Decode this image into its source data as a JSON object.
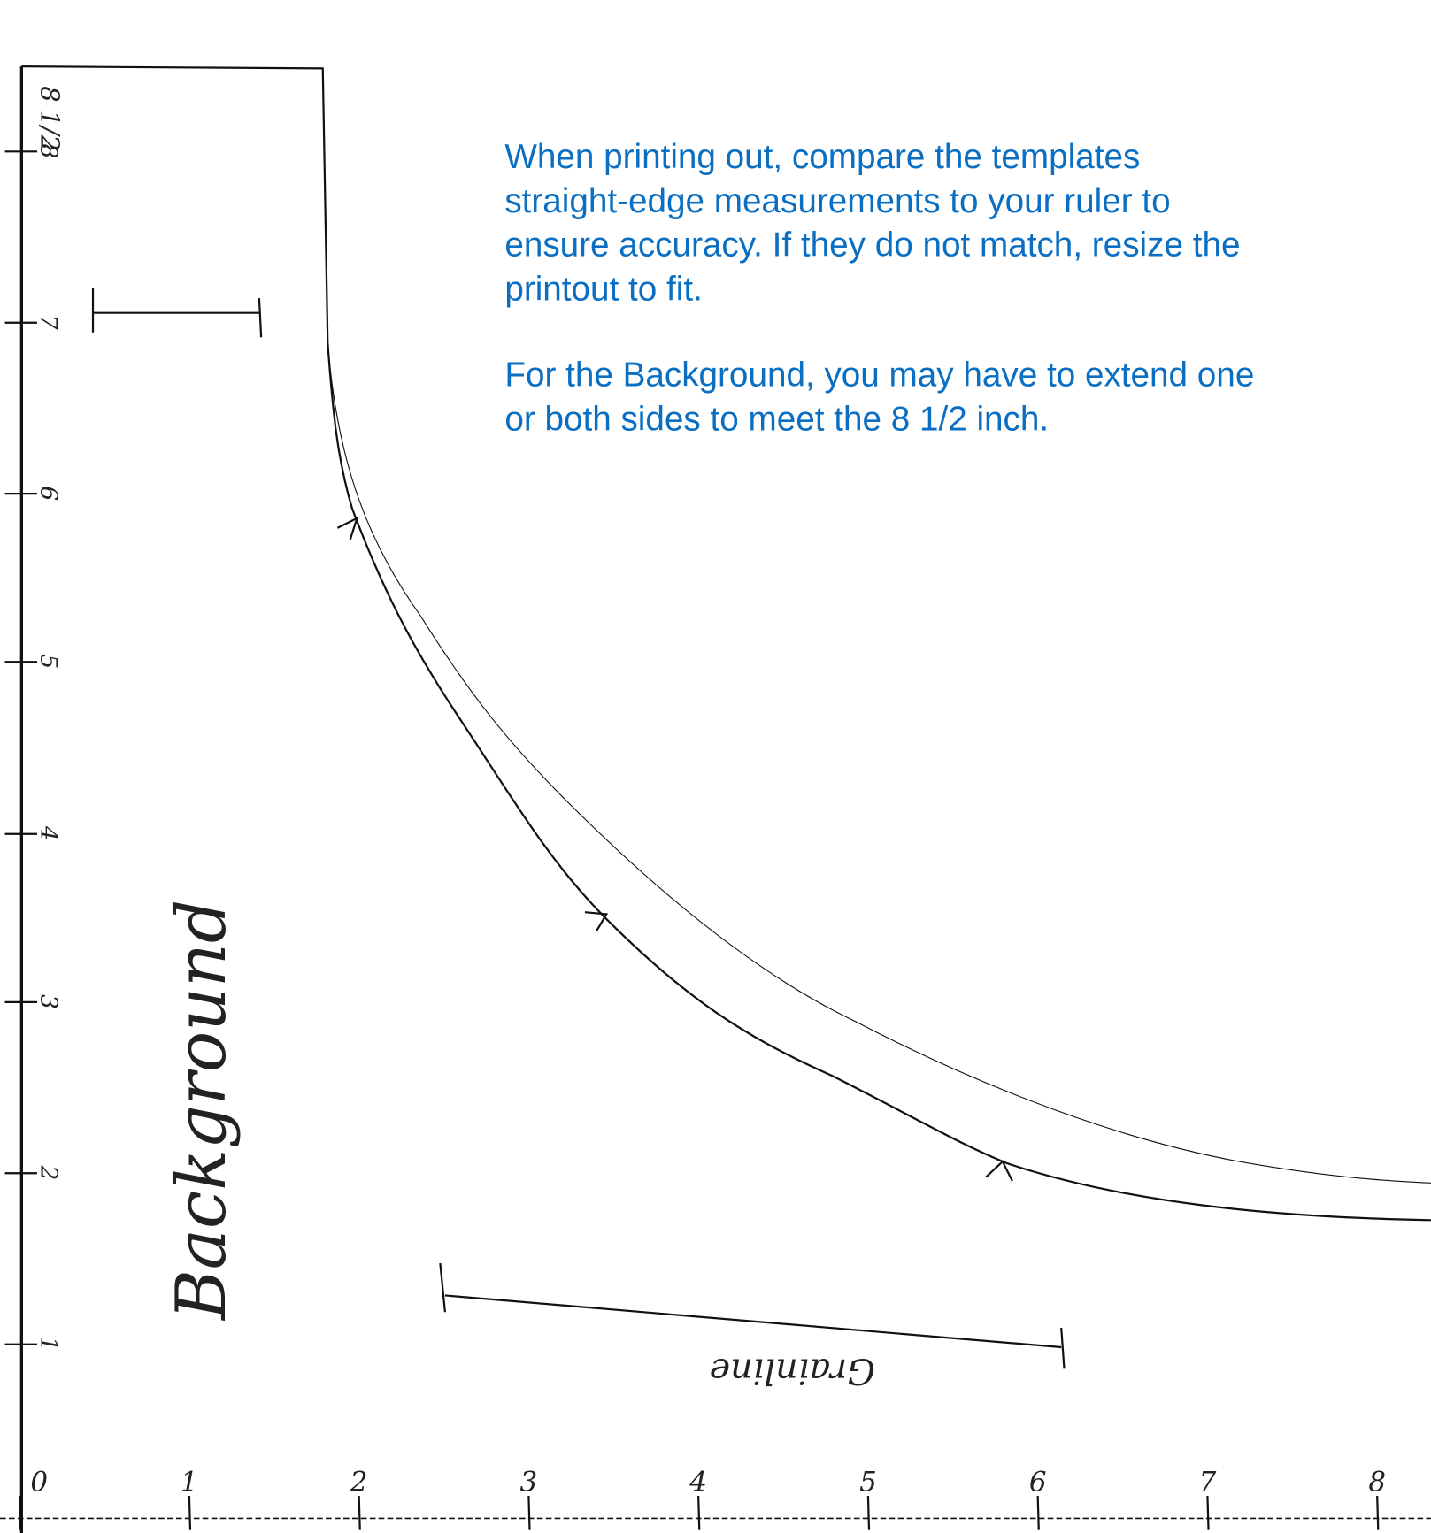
{
  "instructions": [
    [
      "When printing out, compare the templates",
      "straight-edge measurements to your ruler to",
      "ensure accuracy. If they do not match, resize the",
      "printout to fit."
    ],
    [
      "For the Background, you may have to extend one",
      "or both sides to meet the 8 1/2 inch."
    ]
  ],
  "piece_label": "Background",
  "grainline_label": "Grainline",
  "left_ruler": {
    "top_label": "8 1/2",
    "labels": [
      "8",
      "7",
      "6",
      "5",
      "4",
      "3",
      "2",
      "1"
    ]
  },
  "bottom_ruler": {
    "labels": [
      "0",
      "1",
      "2",
      "3",
      "4",
      "5",
      "6",
      "7",
      "8"
    ]
  }
}
